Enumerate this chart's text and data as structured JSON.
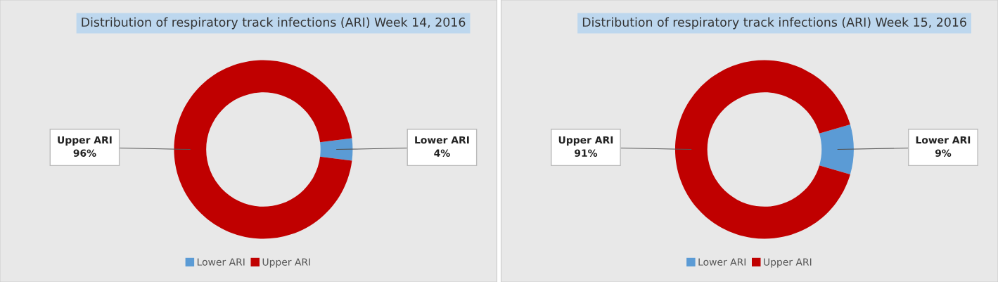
{
  "chart_data": [
    {
      "type": "donut",
      "title": "Distribution of respiratory track infections (ARI) Week 14, 2016",
      "categories": [
        "Lower ARI",
        "Upper ARI"
      ],
      "values": [
        4,
        96
      ],
      "colors": [
        "#5b9bd5",
        "#c00000"
      ],
      "value_labels": [
        "4%",
        "96%"
      ],
      "legend": "bottom"
    },
    {
      "type": "donut",
      "title": "Distribution of respiratory track infections (ARI) Week 15, 2016",
      "categories": [
        "Lower ARI",
        "Upper ARI"
      ],
      "values": [
        9,
        91
      ],
      "colors": [
        "#5b9bd5",
        "#c00000"
      ],
      "value_labels": [
        "9%",
        "91%"
      ],
      "legend": "bottom"
    }
  ]
}
